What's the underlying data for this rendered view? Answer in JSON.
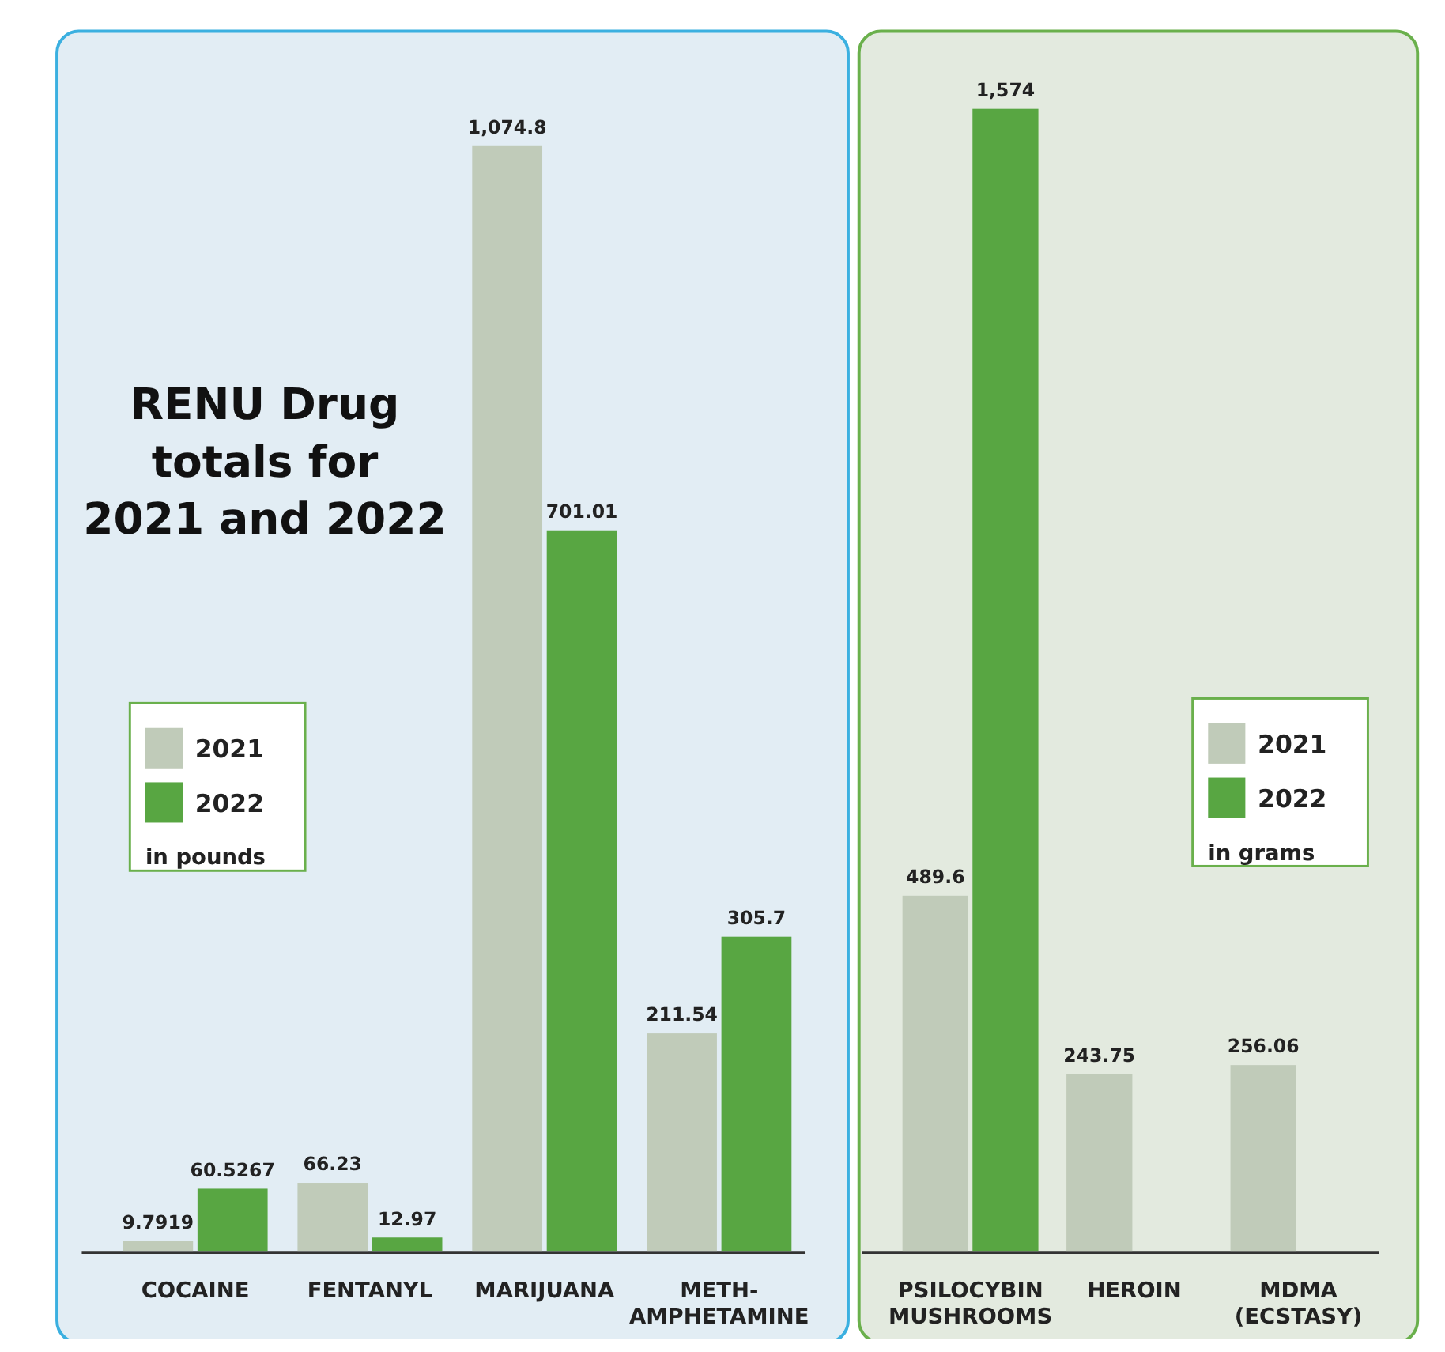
{
  "chart_data": [
    {
      "type": "bar",
      "title": "RENU Drug\ntotals for\n2021 and 2022",
      "categories": [
        "COCAINE",
        "FENTANYL",
        "MARIJUANA",
        "METH-\nAMPHETAMINE"
      ],
      "series": [
        {
          "name": "2021",
          "color": "#c0cbb9",
          "values": [
            9.7919,
            66.23,
            1074.8,
            211.54
          ],
          "value_labels": [
            "9.7919",
            "66.23",
            "1,074.8",
            "211.54"
          ]
        },
        {
          "name": "2022",
          "color": "#58a642",
          "values": [
            60.5267,
            12.97,
            701.01,
            305.7
          ],
          "value_labels": [
            "60.5267",
            "12.97",
            "701.01",
            "305.7"
          ]
        }
      ],
      "legend": "left",
      "legend_title": "in pounds"
    },
    {
      "type": "bar",
      "categories": [
        "PSILOCYBIN\nMUSHROOMS",
        "HEROIN",
        "MDMA\n(ECSTASY)"
      ],
      "series": [
        {
          "name": "2021",
          "color": "#c0cbb9",
          "values": [
            489.6,
            243.75,
            256.06
          ],
          "value_labels": [
            "489.6",
            "243.75",
            "256.06"
          ]
        },
        {
          "name": "2022",
          "color": "#58a642",
          "values": [
            1574,
            null,
            null
          ],
          "value_labels": [
            "1,574",
            null,
            null
          ]
        }
      ],
      "legend": "right",
      "legend_title": "in grams"
    }
  ]
}
